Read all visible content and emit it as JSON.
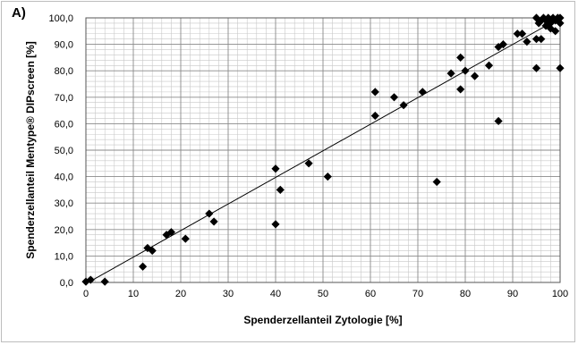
{
  "panel_label": "A)",
  "chart_data": {
    "type": "scatter",
    "title": "",
    "xlabel": "Spenderzellanteil Zytologie [%]",
    "ylabel": "Spenderzellanteil Mentype® DIPscreen [%]",
    "xlim": [
      0,
      100
    ],
    "ylim": [
      0,
      100
    ],
    "x_ticks": [
      "0",
      "10",
      "20",
      "30",
      "40",
      "50",
      "60",
      "70",
      "80",
      "90",
      "100"
    ],
    "y_ticks": [
      "0,0",
      "10,0",
      "20,0",
      "30,0",
      "40,0",
      "50,0",
      "60,0",
      "70,0",
      "80,0",
      "90,0",
      "100,0"
    ],
    "grid": true,
    "trendline": {
      "x": [
        0,
        100
      ],
      "y": [
        -0.5,
        100
      ]
    },
    "marker_color": "#000000",
    "points": [
      {
        "x": 0,
        "y": 0.3
      },
      {
        "x": 1,
        "y": 1
      },
      {
        "x": 4,
        "y": 0.3
      },
      {
        "x": 12,
        "y": 6
      },
      {
        "x": 13,
        "y": 13
      },
      {
        "x": 14,
        "y": 12
      },
      {
        "x": 17,
        "y": 18
      },
      {
        "x": 18,
        "y": 19
      },
      {
        "x": 21,
        "y": 16.5
      },
      {
        "x": 26,
        "y": 26
      },
      {
        "x": 27,
        "y": 23
      },
      {
        "x": 40,
        "y": 43
      },
      {
        "x": 40,
        "y": 22
      },
      {
        "x": 41,
        "y": 35
      },
      {
        "x": 47,
        "y": 45
      },
      {
        "x": 51,
        "y": 40
      },
      {
        "x": 61,
        "y": 72
      },
      {
        "x": 61,
        "y": 63
      },
      {
        "x": 65,
        "y": 70
      },
      {
        "x": 67,
        "y": 67
      },
      {
        "x": 71,
        "y": 72
      },
      {
        "x": 74,
        "y": 38
      },
      {
        "x": 77,
        "y": 79
      },
      {
        "x": 79,
        "y": 85
      },
      {
        "x": 79,
        "y": 73
      },
      {
        "x": 80,
        "y": 80
      },
      {
        "x": 82,
        "y": 78
      },
      {
        "x": 85,
        "y": 82
      },
      {
        "x": 87,
        "y": 89
      },
      {
        "x": 87,
        "y": 61
      },
      {
        "x": 88,
        "y": 90
      },
      {
        "x": 91,
        "y": 94
      },
      {
        "x": 92,
        "y": 94
      },
      {
        "x": 93,
        "y": 91
      },
      {
        "x": 95,
        "y": 92
      },
      {
        "x": 95,
        "y": 81
      },
      {
        "x": 96,
        "y": 92
      },
      {
        "x": 95,
        "y": 100
      },
      {
        "x": 95.5,
        "y": 98
      },
      {
        "x": 96,
        "y": 99
      },
      {
        "x": 96.5,
        "y": 100
      },
      {
        "x": 97,
        "y": 97
      },
      {
        "x": 97,
        "y": 99
      },
      {
        "x": 97.5,
        "y": 100
      },
      {
        "x": 98,
        "y": 96
      },
      {
        "x": 98,
        "y": 98
      },
      {
        "x": 98.5,
        "y": 100
      },
      {
        "x": 99,
        "y": 95
      },
      {
        "x": 99,
        "y": 99
      },
      {
        "x": 99.5,
        "y": 100
      },
      {
        "x": 100,
        "y": 100
      },
      {
        "x": 100,
        "y": 98
      },
      {
        "x": 100,
        "y": 81
      }
    ]
  }
}
